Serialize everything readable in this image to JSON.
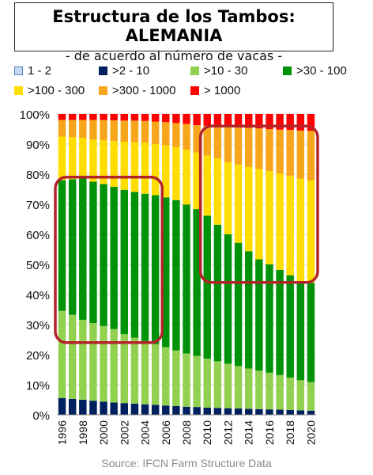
{
  "header": {
    "title": "Estructura de los Tambos: ALEMANIA",
    "subtitle": "- de acuerdo al número de vacas -"
  },
  "source": "Source: IFCN Farm Structure Data",
  "chart_data": {
    "type": "bar",
    "stacked": true,
    "ylim": [
      0,
      100
    ],
    "yticks": [
      "0%",
      "10%",
      "20%",
      "30%",
      "40%",
      "50%",
      "60%",
      "70%",
      "80%",
      "90%",
      "100%"
    ],
    "x_tick_labels": [
      "1996",
      "1998",
      "2000",
      "2002",
      "2004",
      "2006",
      "2008",
      "2010",
      "2012",
      "2014",
      "2016",
      "2018",
      "2020"
    ],
    "categories": [
      "1996",
      "1997",
      "1998",
      "1999",
      "2000",
      "2001",
      "2002",
      "2003",
      "2004",
      "2005",
      "2006",
      "2007",
      "2008",
      "2009",
      "2010",
      "2011",
      "2012",
      "2013",
      "2014",
      "2015",
      "2016",
      "2017",
      "2018",
      "2019",
      "2020"
    ],
    "grid": true,
    "legend_position": "top",
    "series": [
      {
        "name": "1 - 2",
        "color": "#c6d9f1",
        "values": [
          0.1,
          0.1,
          0.1,
          0.1,
          0.1,
          0.1,
          0.1,
          0.1,
          0.1,
          0.1,
          0.1,
          0.1,
          0.1,
          0.1,
          0.1,
          0.1,
          0.1,
          0.1,
          0.1,
          0.1,
          0.1,
          0.1,
          0.1,
          0.1,
          0.1
        ]
      },
      {
        "name": ">2 - 10",
        "color": "#002060",
        "values": [
          5.5,
          5.2,
          4.9,
          4.6,
          4.3,
          4.0,
          3.8,
          3.6,
          3.4,
          3.2,
          3.0,
          2.8,
          2.6,
          2.5,
          2.3,
          2.2,
          2.1,
          2.0,
          1.9,
          1.8,
          1.7,
          1.6,
          1.5,
          1.4,
          1.3
        ]
      },
      {
        "name": ">10 - 30",
        "color": "#92d050",
        "values": [
          29.0,
          28.0,
          26.6,
          25.8,
          25.1,
          24.4,
          22.9,
          21.9,
          21.0,
          20.2,
          19.4,
          18.5,
          17.7,
          17.0,
          16.3,
          15.5,
          14.8,
          14.1,
          13.4,
          12.8,
          12.2,
          11.5,
          10.8,
          10.0,
          9.5
        ]
      },
      {
        "name": ">30 - 100",
        "color": "#00930a",
        "values": [
          43.4,
          45.0,
          47.0,
          47.0,
          47.2,
          47.3,
          48.0,
          48.5,
          49.0,
          49.5,
          49.8,
          50.0,
          49.5,
          48.8,
          47.5,
          45.4,
          43.0,
          41.0,
          39.0,
          37.0,
          36.0,
          35.0,
          34.0,
          33.0,
          33.0
        ]
      },
      {
        "name": ">100 - 300",
        "color": "#ffdd00",
        "values": [
          14.5,
          14.0,
          13.5,
          14.0,
          14.6,
          15.2,
          16.0,
          16.5,
          17.0,
          17.0,
          17.3,
          17.6,
          18.2,
          18.8,
          20.0,
          22.0,
          24.0,
          26.0,
          28.0,
          30.0,
          31.0,
          32.0,
          33.0,
          34.0,
          34.0
        ]
      },
      {
        "name": ">300 - 1000",
        "color": "#f7a61c",
        "values": [
          5.5,
          5.7,
          5.9,
          6.5,
          6.7,
          6.9,
          7.0,
          7.2,
          7.2,
          7.5,
          7.7,
          8.0,
          8.6,
          9.1,
          9.9,
          10.8,
          11.6,
          12.3,
          13.0,
          13.5,
          14.0,
          14.6,
          15.3,
          16.0,
          16.5
        ]
      },
      {
        "name": "> 1000",
        "color": "#ff0000",
        "values": [
          2.0,
          2.0,
          2.0,
          2.0,
          2.0,
          2.1,
          2.2,
          2.2,
          2.3,
          2.5,
          2.7,
          3.0,
          3.3,
          3.7,
          3.9,
          4.0,
          4.4,
          4.5,
          4.6,
          4.8,
          5.0,
          5.2,
          5.3,
          5.5,
          5.6
        ]
      }
    ]
  }
}
